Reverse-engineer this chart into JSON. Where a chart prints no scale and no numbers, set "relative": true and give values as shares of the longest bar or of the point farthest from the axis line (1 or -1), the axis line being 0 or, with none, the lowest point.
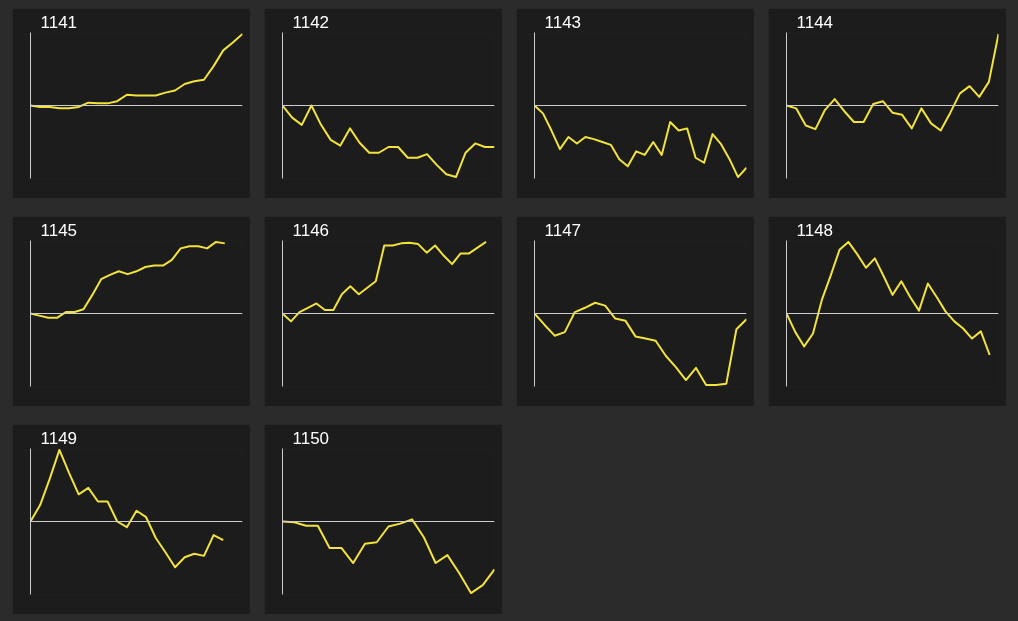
{
  "chart_data": [
    {
      "type": "line",
      "title": "1141",
      "relative": true,
      "color": "#f2e23c",
      "categories": [
        null,
        null,
        null,
        null,
        null,
        null,
        null,
        null,
        null,
        null,
        null,
        null,
        null,
        null,
        null,
        null,
        null,
        null,
        null,
        null,
        null,
        null,
        null
      ],
      "values": [
        0,
        -0.02,
        -0.02,
        -0.04,
        -0.04,
        -0.02,
        0.04,
        0.03,
        0.03,
        0.06,
        0.15,
        0.14,
        0.14,
        0.14,
        0.18,
        0.21,
        0.3,
        0.34,
        0.36,
        0.55,
        0.77,
        0.88,
        1
      ]
    },
    {
      "type": "line",
      "title": "1142",
      "relative": true,
      "color": "#f2e23c",
      "categories": [
        null,
        null,
        null,
        null,
        null,
        null,
        null,
        null,
        null,
        null,
        null,
        null,
        null,
        null,
        null,
        null,
        null,
        null,
        null,
        null,
        null,
        null,
        null
      ],
      "values": [
        0,
        -0.17,
        -0.27,
        0,
        -0.27,
        -0.48,
        -0.56,
        -0.32,
        -0.52,
        -0.66,
        -0.66,
        -0.58,
        -0.58,
        -0.73,
        -0.73,
        -0.68,
        -0.83,
        -0.96,
        -1,
        -0.66,
        -0.53,
        -0.58,
        -0.58
      ]
    },
    {
      "type": "line",
      "title": "1143",
      "relative": true,
      "color": "#f2e23c",
      "categories": [
        null,
        null,
        null,
        null,
        null,
        null,
        null,
        null,
        null,
        null,
        null,
        null,
        null,
        null,
        null,
        null,
        null,
        null,
        null,
        null,
        null,
        null,
        null,
        null,
        null,
        null
      ],
      "values": [
        0,
        -0.11,
        -0.35,
        -0.61,
        -0.44,
        -0.53,
        -0.44,
        -0.47,
        -0.51,
        -0.55,
        -0.75,
        -0.85,
        -0.64,
        -0.69,
        -0.51,
        -0.69,
        -0.23,
        -0.35,
        -0.32,
        -0.73,
        -0.8,
        -0.4,
        -0.54,
        -0.75,
        -1,
        -0.87
      ]
    },
    {
      "type": "line",
      "title": "1144",
      "relative": true,
      "color": "#f2e23c",
      "categories": [
        null,
        null,
        null,
        null,
        null,
        null,
        null,
        null,
        null,
        null,
        null,
        null,
        null,
        null,
        null,
        null,
        null,
        null,
        null,
        null,
        null,
        null,
        null
      ],
      "values": [
        0,
        -0.04,
        -0.28,
        -0.33,
        -0.06,
        0.09,
        -0.08,
        -0.23,
        -0.23,
        0.02,
        0.06,
        -0.1,
        -0.13,
        -0.32,
        -0.04,
        -0.25,
        -0.35,
        -0.1,
        0.17,
        0.27,
        0.12,
        0.33,
        1
      ]
    },
    {
      "type": "line",
      "title": "1145",
      "relative": true,
      "color": "#f2e23c",
      "categories": [
        null,
        null,
        null,
        null,
        null,
        null,
        null,
        null,
        null,
        null,
        null,
        null,
        null,
        null,
        null,
        null,
        null,
        null,
        null,
        null,
        null,
        null,
        null,
        null,
        null
      ],
      "values": [
        0,
        -0.03,
        -0.06,
        -0.06,
        0.02,
        0.02,
        0.06,
        0.26,
        0.48,
        0.54,
        0.59,
        0.55,
        0.59,
        0.65,
        0.67,
        0.67,
        0.75,
        0.91,
        0.94,
        0.94,
        0.91,
        1,
        0.98,
        null,
        null
      ]
    },
    {
      "type": "line",
      "title": "1146",
      "relative": true,
      "color": "#f2e23c",
      "categories": [
        null,
        null,
        null,
        null,
        null,
        null,
        null,
        null,
        null,
        null,
        null,
        null,
        null,
        null,
        null,
        null,
        null,
        null,
        null,
        null,
        null,
        null,
        null,
        null,
        null,
        null
      ],
      "values": [
        0,
        -0.11,
        0.02,
        0.08,
        0.14,
        0.05,
        0.05,
        0.27,
        0.38,
        0.27,
        0.36,
        0.45,
        0.95,
        0.95,
        0.98,
        0.99,
        0.97,
        0.85,
        0.95,
        0.81,
        0.69,
        0.84,
        0.84,
        0.92,
        1,
        null
      ]
    },
    {
      "type": "line",
      "title": "1147",
      "relative": true,
      "color": "#f2e23c",
      "categories": [
        null,
        null,
        null,
        null,
        null,
        null,
        null,
        null,
        null,
        null,
        null,
        null,
        null,
        null,
        null,
        null,
        null,
        null,
        null,
        null,
        null,
        null
      ],
      "values": [
        0,
        -0.16,
        -0.31,
        -0.26,
        0.02,
        0.08,
        0.15,
        0.11,
        -0.07,
        -0.1,
        -0.32,
        -0.35,
        -0.38,
        -0.59,
        -0.75,
        -0.93,
        -0.76,
        -1,
        -1,
        -0.98,
        -0.22,
        -0.08
      ]
    },
    {
      "type": "line",
      "title": "1148",
      "relative": true,
      "color": "#f2e23c",
      "categories": [
        null,
        null,
        null,
        null,
        null,
        null,
        null,
        null,
        null,
        null,
        null,
        null,
        null,
        null,
        null,
        null,
        null,
        null,
        null,
        null,
        null,
        null,
        null,
        null,
        null
      ],
      "values": [
        0,
        -0.26,
        -0.46,
        -0.28,
        0.19,
        0.53,
        0.89,
        1,
        0.83,
        0.64,
        0.77,
        0.52,
        0.26,
        0.45,
        0.23,
        0.04,
        0.42,
        0.23,
        0.03,
        -0.11,
        -0.21,
        -0.35,
        -0.25,
        -0.58,
        null
      ]
    },
    {
      "type": "line",
      "title": "1149",
      "relative": true,
      "color": "#f2e23c",
      "categories": [
        null,
        null,
        null,
        null,
        null,
        null,
        null,
        null,
        null,
        null,
        null,
        null,
        null,
        null,
        null,
        null,
        null,
        null,
        null,
        null,
        null,
        null,
        null
      ],
      "values": [
        0,
        0.23,
        0.6,
        1,
        0.68,
        0.38,
        0.47,
        0.28,
        0.28,
        0,
        -0.08,
        0.15,
        0.06,
        -0.23,
        -0.43,
        -0.64,
        -0.5,
        -0.45,
        -0.48,
        -0.19,
        -0.26,
        null,
        null
      ]
    },
    {
      "type": "line",
      "title": "1150",
      "relative": true,
      "color": "#f2e23c",
      "categories": [
        null,
        null,
        null,
        null,
        null,
        null,
        null,
        null,
        null,
        null,
        null,
        null,
        null,
        null,
        null,
        null,
        null,
        null,
        null
      ],
      "values": [
        0,
        -0.01,
        -0.06,
        -0.06,
        -0.37,
        -0.37,
        -0.58,
        -0.31,
        -0.29,
        -0.07,
        -0.03,
        0.03,
        -0.22,
        -0.58,
        -0.47,
        -0.72,
        -1,
        -0.89,
        -0.67
      ]
    }
  ]
}
